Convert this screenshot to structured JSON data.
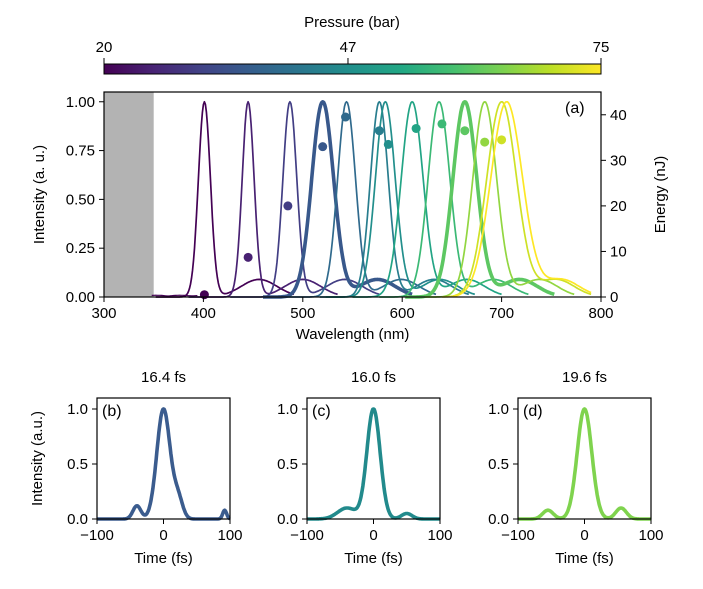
{
  "colors": {
    "viridis": [
      "#440154",
      "#482475",
      "#414487",
      "#355f8d",
      "#2a788e",
      "#21918c",
      "#22a884",
      "#44bf70",
      "#7ad151",
      "#bddf26",
      "#fde725"
    ],
    "shade": "#b3b3b3"
  },
  "colorbar": {
    "label": "Pressure (bar)",
    "ticks": [
      {
        "value": 20,
        "label": "20"
      },
      {
        "value": 47,
        "label": "47"
      },
      {
        "value": 75,
        "label": "75"
      }
    ],
    "min": 20,
    "max": 75
  },
  "chart_data": [
    {
      "type": "line",
      "panel": "(a)",
      "xlabel": "Wavelength (nm)",
      "ylabel": "Intensity (a. u.)",
      "y2label": "Energy (nJ)",
      "xlim": [
        300,
        800
      ],
      "ylim": [
        0,
        1.05
      ],
      "y2lim": [
        0,
        45
      ],
      "xticks": [
        300,
        400,
        500,
        600,
        700,
        800
      ],
      "yticks": [
        0,
        0.25,
        0.5,
        0.75,
        1.0
      ],
      "ytick_labels": [
        "0.00",
        "0.25",
        "0.50",
        "0.75",
        "1.00"
      ],
      "y2ticks": [
        0,
        10,
        20,
        30,
        40
      ],
      "shaded_region": [
        300,
        350
      ],
      "spectra": [
        {
          "pressure": 20,
          "peak": 401,
          "width": 6,
          "bold": false
        },
        {
          "pressure": 25,
          "peak": 445,
          "width": 6,
          "bold": false
        },
        {
          "pressure": 30,
          "peak": 487,
          "width": 7,
          "bold": false
        },
        {
          "pressure": 35,
          "peak": 520,
          "width": 11,
          "bold": true
        },
        {
          "pressure": 39,
          "peak": 544,
          "width": 9,
          "bold": false
        },
        {
          "pressure": 43,
          "peak": 577,
          "width": 9,
          "bold": false
        },
        {
          "pressure": 47,
          "peak": 583,
          "width": 10,
          "bold": false
        },
        {
          "pressure": 52,
          "peak": 610,
          "width": 11,
          "bold": false
        },
        {
          "pressure": 57,
          "peak": 637,
          "width": 11,
          "bold": false
        },
        {
          "pressure": 61,
          "peak": 663,
          "width": 12,
          "bold": true
        },
        {
          "pressure": 66,
          "peak": 683,
          "width": 12,
          "bold": false
        },
        {
          "pressure": 71,
          "peak": 700,
          "width": 15,
          "bold": false
        },
        {
          "pressure": 75,
          "peak": 705,
          "width": 16,
          "bold": false
        }
      ],
      "energy_points": [
        {
          "x": 401,
          "y": 0.5,
          "pressure": 20
        },
        {
          "x": 445,
          "y": 8.7,
          "pressure": 25
        },
        {
          "x": 485,
          "y": 20,
          "pressure": 30
        },
        {
          "x": 520,
          "y": 33,
          "pressure": 35
        },
        {
          "x": 543,
          "y": 39.5,
          "pressure": 39
        },
        {
          "x": 577,
          "y": 36.5,
          "pressure": 43
        },
        {
          "x": 586,
          "y": 33.5,
          "pressure": 47
        },
        {
          "x": 614,
          "y": 37,
          "pressure": 52
        },
        {
          "x": 640,
          "y": 38,
          "pressure": 57
        },
        {
          "x": 663,
          "y": 36.5,
          "pressure": 61
        },
        {
          "x": 683,
          "y": 34,
          "pressure": 66
        },
        {
          "x": 700,
          "y": 34.5,
          "pressure": 71
        }
      ]
    },
    {
      "type": "line",
      "panel": "(b)",
      "title": "16.4 fs",
      "xlabel": "Time (fs)",
      "ylabel": "Intensity (a.u.)",
      "xlim": [
        -100,
        100
      ],
      "ylim": [
        0,
        1.1
      ],
      "xticks": [
        -100,
        0,
        100
      ],
      "yticks": [
        0,
        0.5,
        1.0
      ],
      "ytick_labels": [
        "0.0",
        "0.5",
        "1.0"
      ],
      "color": "#3b5c8e",
      "pulse": {
        "width": 10,
        "side": [
          {
            "t": -40,
            "a": 0.12,
            "w": 6
          },
          {
            "t": 22,
            "a": 0.18,
            "w": 7
          },
          {
            "t": 92,
            "a": 0.08,
            "w": 3
          }
        ]
      }
    },
    {
      "type": "line",
      "panel": "(c)",
      "title": "16.0 fs",
      "xlabel": "Time (fs)",
      "xlim": [
        -100,
        100
      ],
      "ylim": [
        0,
        1.1
      ],
      "xticks": [
        -100,
        0,
        100
      ],
      "yticks": [
        0,
        0.5,
        1.0
      ],
      "ytick_labels": [
        "0.0",
        "0.5",
        "1.0"
      ],
      "color": "#228a8c",
      "pulse": {
        "width": 10,
        "side": [
          {
            "t": -40,
            "a": 0.1,
            "w": 14
          },
          {
            "t": 50,
            "a": 0.05,
            "w": 8
          }
        ]
      }
    },
    {
      "type": "line",
      "panel": "(d)",
      "title": "19.6 fs",
      "xlabel": "Time (fs)",
      "xlim": [
        -100,
        100
      ],
      "ylim": [
        0,
        1.1
      ],
      "xticks": [
        -100,
        0,
        100
      ],
      "yticks": [
        0,
        0.5,
        1.0
      ],
      "ytick_labels": [
        "0.0",
        "0.5",
        "1.0"
      ],
      "color": "#7fd34e",
      "pulse": {
        "width": 11,
        "side": [
          {
            "t": -55,
            "a": 0.08,
            "w": 8
          },
          {
            "t": 55,
            "a": 0.1,
            "w": 8
          }
        ]
      }
    }
  ]
}
